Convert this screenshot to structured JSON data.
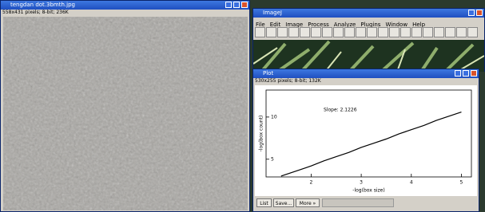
{
  "windows": {
    "image": {
      "title": "tengdan dot.3bmth.jpg",
      "info": "558x431 pixels; 8-bit; 236K"
    },
    "imagej": {
      "title": "ImageJ",
      "menu": [
        "File",
        "Edit",
        "Image",
        "Process",
        "Analyze",
        "Plugins",
        "Window",
        "Help"
      ]
    },
    "plot": {
      "title": "Plot",
      "info": "530x255 pixels; 8-bit; 132K",
      "buttons": [
        "List",
        "Save...",
        "More »"
      ]
    }
  },
  "chart_data": {
    "type": "line",
    "annotation": "Slope: 2.1226",
    "x_label": "-log(box size)",
    "y_label": "-log(box count)",
    "x": [
      1.4,
      1.5,
      1.75,
      2,
      2.25,
      2.5,
      2.75,
      3,
      3.25,
      3.5,
      3.75,
      4,
      4.25,
      4.5,
      4.75,
      5
    ],
    "series": [
      {
        "color": "#000000",
        "values": [
          3.0,
          3.2,
          3.7,
          4.2,
          4.8,
          5.3,
          5.8,
          6.4,
          6.9,
          7.4,
          8.0,
          8.5,
          9.0,
          9.6,
          10.1,
          10.6
        ]
      }
    ],
    "xlim": [
      1.1,
      5.2
    ],
    "ylim": [
      2.9,
      13.2
    ],
    "xticks": [
      2,
      3,
      4,
      5
    ],
    "yticks": [
      5,
      10
    ]
  }
}
